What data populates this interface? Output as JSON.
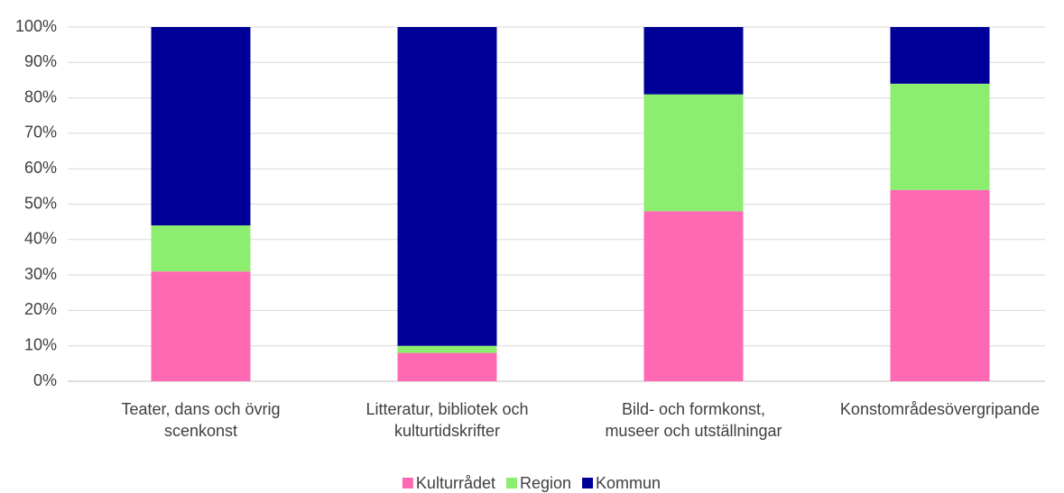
{
  "chart_data": {
    "type": "stacked_bar",
    "categories": [
      [
        "Teater, dans och övrig",
        "scenkonst"
      ],
      [
        "Litteratur, bibliotek och",
        "kulturtidskrifter"
      ],
      [
        "Bild- och formkonst,",
        "museer och utställningar"
      ],
      [
        "Konstområdesövergripande"
      ]
    ],
    "series": [
      {
        "name": "Kulturrådet",
        "color": "#ff69b4",
        "values": [
          31,
          8,
          48,
          54
        ]
      },
      {
        "name": "Region",
        "color": "#8cee6e",
        "values": [
          13,
          2,
          33,
          30
        ]
      },
      {
        "name": "Kommun",
        "color": "#000099",
        "values": [
          56,
          90,
          19,
          16
        ]
      }
    ],
    "ylim": [
      0,
      100
    ],
    "yticks": [
      {
        "value": 0,
        "label": "0%"
      },
      {
        "value": 10,
        "label": "10%"
      },
      {
        "value": 20,
        "label": "20%"
      },
      {
        "value": 30,
        "label": "30%"
      },
      {
        "value": 40,
        "label": "40%"
      },
      {
        "value": 50,
        "label": "50%"
      },
      {
        "value": 60,
        "label": "60%"
      },
      {
        "value": 70,
        "label": "70%"
      },
      {
        "value": 80,
        "label": "80%"
      },
      {
        "value": 90,
        "label": "90%"
      },
      {
        "value": 100,
        "label": "100%"
      }
    ],
    "grid": true,
    "legend": "bottom"
  }
}
